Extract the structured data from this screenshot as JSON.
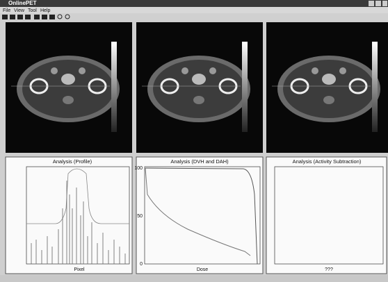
{
  "window": {
    "title": "OnlinePET"
  },
  "menu": [
    "File",
    "View",
    "Tool",
    "Help"
  ],
  "panels": [
    {
      "title": "Analysis (Profile)",
      "x_label": "Pixel"
    },
    {
      "title": "Analysis (DVH and DAH)",
      "x_label": "Dose",
      "y_ticks": [
        100,
        50,
        0
      ]
    },
    {
      "title": "Analysis (Activity Subtraction)",
      "x_label": "???"
    }
  ]
}
